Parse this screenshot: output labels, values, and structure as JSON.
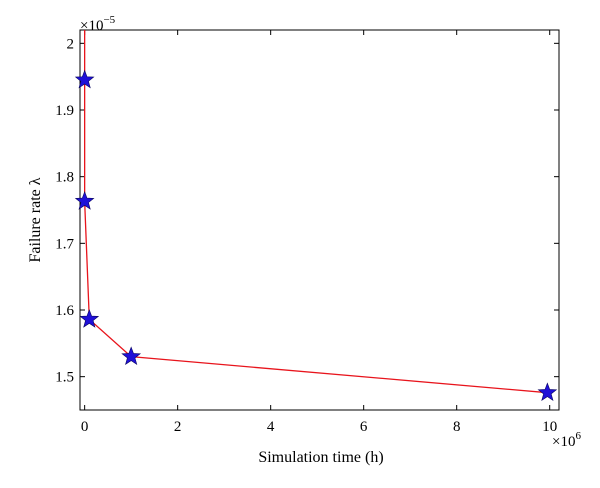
{
  "chart_data": {
    "type": "line",
    "xlabel": "Simulation time (h)",
    "ylabel": "Failure rate λ",
    "x_exponent_label": "×10",
    "x_exponent": "6",
    "y_exponent_label": "×10",
    "y_exponent": "−5",
    "xlim": [
      -0.1,
      10.2
    ],
    "ylim": [
      1.45,
      2.02
    ],
    "x_ticks": [
      0,
      2,
      4,
      6,
      8,
      10
    ],
    "x_tick_labels": [
      "0",
      "2",
      "4",
      "6",
      "8",
      "10"
    ],
    "y_ticks": [
      1.5,
      1.6,
      1.7,
      1.8,
      1.9,
      2.0
    ],
    "y_tick_labels": [
      "1.5",
      "1.6",
      "1.7",
      "1.8",
      "1.9",
      "2"
    ],
    "grid": false,
    "series": [
      {
        "line_color": "#e8141c",
        "marker": "star",
        "marker_color": "#1f10d8",
        "line_points": [
          {
            "x": 0.0,
            "y": 2.02
          },
          {
            "x": 0.0,
            "y": 1.945
          },
          {
            "x": 0.0,
            "y": 1.763
          },
          {
            "x": 0.1,
            "y": 1.586
          },
          {
            "x": 1.0,
            "y": 1.53
          },
          {
            "x": 9.95,
            "y": 1.476
          }
        ],
        "marker_points": [
          {
            "x": 0.0,
            "y": 1.945
          },
          {
            "x": 0.0,
            "y": 1.763
          },
          {
            "x": 0.1,
            "y": 1.586
          },
          {
            "x": 1.0,
            "y": 1.53
          },
          {
            "x": 9.95,
            "y": 1.476
          }
        ]
      }
    ]
  }
}
